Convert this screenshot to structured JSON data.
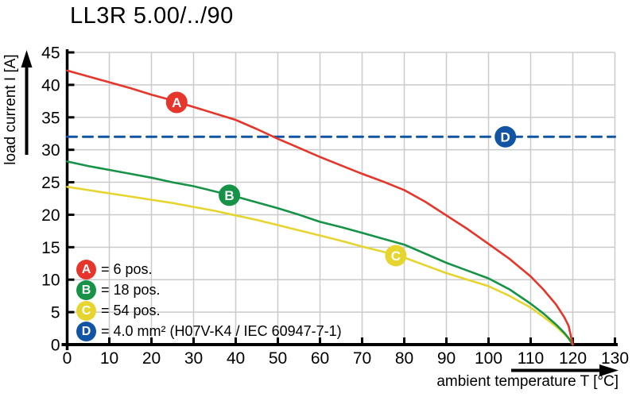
{
  "title": "LL3R 5.00/../90",
  "axes": {
    "x_label": "ambient temperature T [°C]",
    "y_label": "load current I [A]"
  },
  "legend": {
    "items": [
      {
        "letter": "A",
        "label": "= 6 pos.",
        "color": "#e6352a"
      },
      {
        "letter": "B",
        "label": "= 18 pos.",
        "color": "#169346"
      },
      {
        "letter": "C",
        "label": "= 54 pos.",
        "color": "#e6d52f"
      },
      {
        "letter": "D",
        "label": "= 4.0 mm² (H07V-K4 / IEC 60947-7-1)",
        "color": "#1254a4"
      }
    ]
  },
  "chart_data": {
    "type": "line",
    "title": "LL3R 5.00/../90",
    "xlabel": "ambient temperature T [°C]",
    "ylabel": "load current I [A]",
    "xlim": [
      0,
      130
    ],
    "ylim": [
      0,
      45
    ],
    "x_ticks": [
      0,
      10,
      20,
      30,
      40,
      50,
      60,
      70,
      80,
      90,
      100,
      110,
      120,
      130
    ],
    "y_ticks": [
      0,
      5,
      10,
      15,
      20,
      25,
      30,
      35,
      40,
      45
    ],
    "grid": true,
    "grid_color": "#cbcbcb",
    "legend_position": "inside bottom-left",
    "series": [
      {
        "name": "D",
        "label": "4.0 mm² (H07V-K4 / IEC 60947-7-1)",
        "color": "#1254a4",
        "style": "dashed",
        "marker_at": {
          "x": 104,
          "y": 32
        },
        "points": [
          [
            0,
            32
          ],
          [
            130,
            32
          ]
        ]
      },
      {
        "name": "C",
        "label": "54 pos.",
        "color": "#e6d52f",
        "style": "solid",
        "marker_at": {
          "x": 78,
          "y": 13.7
        },
        "points": [
          [
            0,
            24.3
          ],
          [
            5,
            23.8
          ],
          [
            10,
            23.3
          ],
          [
            15,
            22.8
          ],
          [
            20,
            22.3
          ],
          [
            25,
            21.8
          ],
          [
            30,
            21.2
          ],
          [
            35,
            20.6
          ],
          [
            40,
            19.9
          ],
          [
            45,
            19.2
          ],
          [
            50,
            18.4
          ],
          [
            55,
            17.6
          ],
          [
            60,
            16.8
          ],
          [
            65,
            16.0
          ],
          [
            70,
            15.1
          ],
          [
            75,
            14.3
          ],
          [
            80,
            13.4
          ],
          [
            85,
            12.2
          ],
          [
            90,
            11.0
          ],
          [
            95,
            10.0
          ],
          [
            100,
            9.0
          ],
          [
            105,
            7.5
          ],
          [
            110,
            5.7
          ],
          [
            113,
            4.3
          ],
          [
            116,
            2.8
          ],
          [
            118,
            1.6
          ],
          [
            119,
            0.9
          ],
          [
            120,
            0
          ]
        ]
      },
      {
        "name": "B",
        "label": "18 pos.",
        "color": "#169346",
        "style": "solid",
        "marker_at": {
          "x": 38.5,
          "y": 23
        },
        "points": [
          [
            0,
            28.2
          ],
          [
            5,
            27.5
          ],
          [
            10,
            26.9
          ],
          [
            15,
            26.3
          ],
          [
            20,
            25.7
          ],
          [
            25,
            25.0
          ],
          [
            30,
            24.4
          ],
          [
            35,
            23.6
          ],
          [
            40,
            22.8
          ],
          [
            45,
            21.9
          ],
          [
            50,
            21.0
          ],
          [
            55,
            20.0
          ],
          [
            60,
            18.9
          ],
          [
            65,
            18.1
          ],
          [
            70,
            17.2
          ],
          [
            75,
            16.3
          ],
          [
            80,
            15.4
          ],
          [
            85,
            14.0
          ],
          [
            90,
            12.6
          ],
          [
            95,
            11.4
          ],
          [
            100,
            10.2
          ],
          [
            105,
            8.5
          ],
          [
            110,
            6.3
          ],
          [
            113,
            4.8
          ],
          [
            116,
            3.1
          ],
          [
            118,
            1.8
          ],
          [
            119,
            1.0
          ],
          [
            120,
            0
          ]
        ]
      },
      {
        "name": "A",
        "label": "6 pos.",
        "color": "#e6352a",
        "style": "solid",
        "marker_at": {
          "x": 26,
          "y": 37.3
        },
        "points": [
          [
            0,
            42.2
          ],
          [
            5,
            41.3
          ],
          [
            10,
            40.4
          ],
          [
            15,
            39.5
          ],
          [
            20,
            38.5
          ],
          [
            25,
            37.6
          ],
          [
            30,
            36.6
          ],
          [
            35,
            35.6
          ],
          [
            40,
            34.6
          ],
          [
            45,
            33.2
          ],
          [
            50,
            31.7
          ],
          [
            55,
            30.3
          ],
          [
            60,
            28.9
          ],
          [
            65,
            27.6
          ],
          [
            70,
            26.3
          ],
          [
            75,
            25.1
          ],
          [
            80,
            23.8
          ],
          [
            85,
            22.0
          ],
          [
            90,
            19.9
          ],
          [
            95,
            17.8
          ],
          [
            100,
            15.5
          ],
          [
            105,
            13.2
          ],
          [
            110,
            10.5
          ],
          [
            113,
            8.5
          ],
          [
            116,
            6.2
          ],
          [
            118,
            4.2
          ],
          [
            119,
            2.9
          ],
          [
            120,
            0
          ]
        ]
      }
    ]
  }
}
